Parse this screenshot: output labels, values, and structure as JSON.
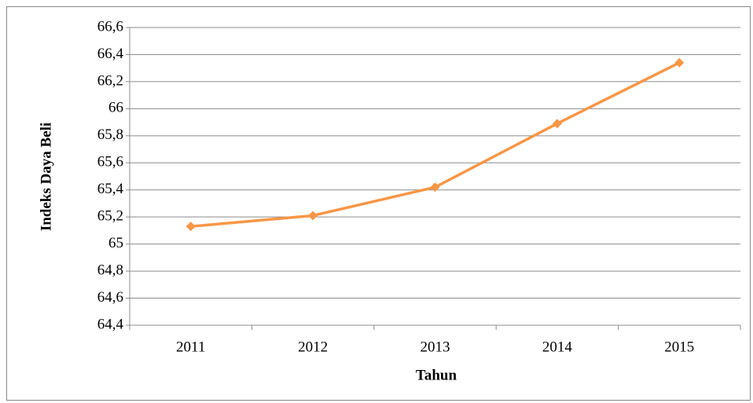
{
  "chart_data": {
    "type": "line",
    "xlabel": "Tahun",
    "ylabel": "Indeks Daya Beli",
    "categories": [
      "2011",
      "2012",
      "2013",
      "2014",
      "2015"
    ],
    "series": [
      {
        "name": "Indeks Daya Beli",
        "color": "#f79646",
        "values": [
          65.13,
          65.21,
          65.42,
          65.89,
          66.34
        ]
      }
    ],
    "ylim": [
      64.4,
      66.6
    ],
    "yticks": [
      {
        "value": 64.4,
        "label": "64,4"
      },
      {
        "value": 64.6,
        "label": "64,6"
      },
      {
        "value": 64.8,
        "label": "64,8"
      },
      65,
      {
        "value": 65.2,
        "label": "65,2"
      },
      {
        "value": 65.4,
        "label": "65,4"
      },
      {
        "value": 65.6,
        "label": "65,6"
      },
      {
        "value": 65.8,
        "label": "65,8"
      },
      66,
      {
        "value": 66.2,
        "label": "66,2"
      },
      {
        "value": 66.4,
        "label": "66,4"
      },
      {
        "value": 66.6,
        "label": "66,6"
      }
    ],
    "grid": true,
    "legend": false
  }
}
